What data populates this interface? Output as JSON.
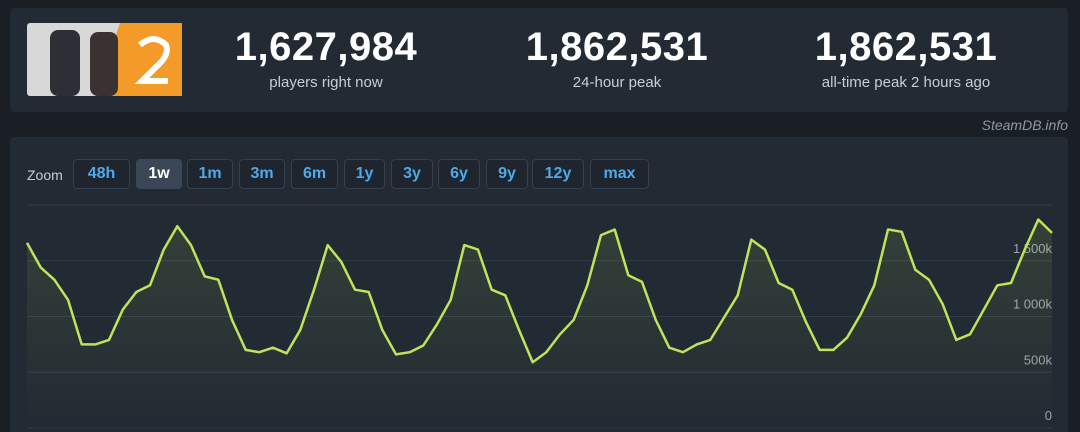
{
  "stats": [
    {
      "value": "1,627,984",
      "label": "players right now"
    },
    {
      "value": "1,862,531",
      "label": "24-hour peak"
    },
    {
      "value": "1,862,531",
      "label": "all-time peak 2 hours ago"
    }
  ],
  "watermark": "SteamDB.info",
  "zoom": {
    "label": "Zoom",
    "buttons": [
      "48h",
      "1w",
      "1m",
      "3m",
      "6m",
      "1y",
      "3y",
      "6y",
      "9y",
      "12y",
      "max"
    ],
    "active": "1w"
  },
  "chart_data": {
    "type": "line",
    "color": "#bfe35a",
    "grid": true,
    "ylim": [
      0,
      2000000
    ],
    "yticks": [
      0,
      {
        "value": 500000,
        "label": "500k"
      },
      {
        "value": 1000000,
        "label": "1 000k"
      },
      {
        "value": 1500000,
        "label": "1 500k"
      }
    ],
    "values": [
      1660000,
      1440000,
      1330000,
      1150000,
      750000,
      750000,
      790000,
      1060000,
      1220000,
      1280000,
      1600000,
      1810000,
      1640000,
      1360000,
      1330000,
      970000,
      700000,
      680000,
      720000,
      670000,
      880000,
      1240000,
      1640000,
      1490000,
      1240000,
      1220000,
      880000,
      660000,
      680000,
      740000,
      930000,
      1150000,
      1640000,
      1600000,
      1240000,
      1190000,
      880000,
      590000,
      680000,
      840000,
      970000,
      1280000,
      1730000,
      1780000,
      1370000,
      1310000,
      970000,
      720000,
      680000,
      750000,
      790000,
      990000,
      1190000,
      1690000,
      1600000,
      1300000,
      1240000,
      950000,
      700000,
      700000,
      810000,
      1020000,
      1280000,
      1780000,
      1760000,
      1420000,
      1330000,
      1110000,
      790000,
      840000,
      1060000,
      1280000,
      1300000,
      1600000,
      1870000,
      1750000
    ]
  }
}
